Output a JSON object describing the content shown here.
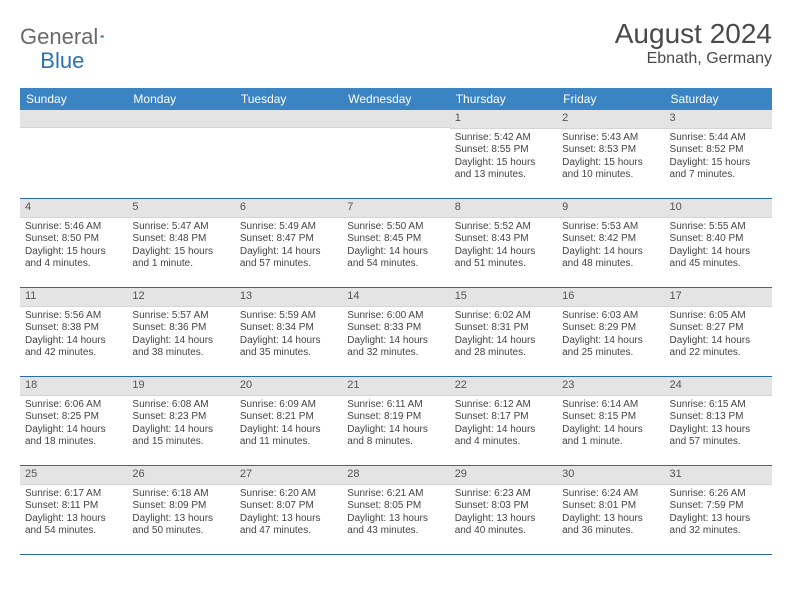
{
  "logo": {
    "text1": "General",
    "text2": "Blue"
  },
  "title": "August 2024",
  "location": "Ebnath, Germany",
  "day_headers": [
    "Sunday",
    "Monday",
    "Tuesday",
    "Wednesday",
    "Thursday",
    "Friday",
    "Saturday"
  ],
  "colors": {
    "header_bg": "#3b84c4",
    "header_fg": "#ffffff",
    "daynum_bg": "#e4e4e4",
    "rule": "#2a6aa8"
  },
  "weeks": [
    [
      null,
      null,
      null,
      null,
      {
        "n": "1",
        "sr": "5:42 AM",
        "ss": "8:55 PM",
        "dl": "15 hours and 13 minutes."
      },
      {
        "n": "2",
        "sr": "5:43 AM",
        "ss": "8:53 PM",
        "dl": "15 hours and 10 minutes."
      },
      {
        "n": "3",
        "sr": "5:44 AM",
        "ss": "8:52 PM",
        "dl": "15 hours and 7 minutes."
      }
    ],
    [
      {
        "n": "4",
        "sr": "5:46 AM",
        "ss": "8:50 PM",
        "dl": "15 hours and 4 minutes."
      },
      {
        "n": "5",
        "sr": "5:47 AM",
        "ss": "8:48 PM",
        "dl": "15 hours and 1 minute."
      },
      {
        "n": "6",
        "sr": "5:49 AM",
        "ss": "8:47 PM",
        "dl": "14 hours and 57 minutes."
      },
      {
        "n": "7",
        "sr": "5:50 AM",
        "ss": "8:45 PM",
        "dl": "14 hours and 54 minutes."
      },
      {
        "n": "8",
        "sr": "5:52 AM",
        "ss": "8:43 PM",
        "dl": "14 hours and 51 minutes."
      },
      {
        "n": "9",
        "sr": "5:53 AM",
        "ss": "8:42 PM",
        "dl": "14 hours and 48 minutes."
      },
      {
        "n": "10",
        "sr": "5:55 AM",
        "ss": "8:40 PM",
        "dl": "14 hours and 45 minutes."
      }
    ],
    [
      {
        "n": "11",
        "sr": "5:56 AM",
        "ss": "8:38 PM",
        "dl": "14 hours and 42 minutes."
      },
      {
        "n": "12",
        "sr": "5:57 AM",
        "ss": "8:36 PM",
        "dl": "14 hours and 38 minutes."
      },
      {
        "n": "13",
        "sr": "5:59 AM",
        "ss": "8:34 PM",
        "dl": "14 hours and 35 minutes."
      },
      {
        "n": "14",
        "sr": "6:00 AM",
        "ss": "8:33 PM",
        "dl": "14 hours and 32 minutes."
      },
      {
        "n": "15",
        "sr": "6:02 AM",
        "ss": "8:31 PM",
        "dl": "14 hours and 28 minutes."
      },
      {
        "n": "16",
        "sr": "6:03 AM",
        "ss": "8:29 PM",
        "dl": "14 hours and 25 minutes."
      },
      {
        "n": "17",
        "sr": "6:05 AM",
        "ss": "8:27 PM",
        "dl": "14 hours and 22 minutes."
      }
    ],
    [
      {
        "n": "18",
        "sr": "6:06 AM",
        "ss": "8:25 PM",
        "dl": "14 hours and 18 minutes."
      },
      {
        "n": "19",
        "sr": "6:08 AM",
        "ss": "8:23 PM",
        "dl": "14 hours and 15 minutes."
      },
      {
        "n": "20",
        "sr": "6:09 AM",
        "ss": "8:21 PM",
        "dl": "14 hours and 11 minutes."
      },
      {
        "n": "21",
        "sr": "6:11 AM",
        "ss": "8:19 PM",
        "dl": "14 hours and 8 minutes."
      },
      {
        "n": "22",
        "sr": "6:12 AM",
        "ss": "8:17 PM",
        "dl": "14 hours and 4 minutes."
      },
      {
        "n": "23",
        "sr": "6:14 AM",
        "ss": "8:15 PM",
        "dl": "14 hours and 1 minute."
      },
      {
        "n": "24",
        "sr": "6:15 AM",
        "ss": "8:13 PM",
        "dl": "13 hours and 57 minutes."
      }
    ],
    [
      {
        "n": "25",
        "sr": "6:17 AM",
        "ss": "8:11 PM",
        "dl": "13 hours and 54 minutes."
      },
      {
        "n": "26",
        "sr": "6:18 AM",
        "ss": "8:09 PM",
        "dl": "13 hours and 50 minutes."
      },
      {
        "n": "27",
        "sr": "6:20 AM",
        "ss": "8:07 PM",
        "dl": "13 hours and 47 minutes."
      },
      {
        "n": "28",
        "sr": "6:21 AM",
        "ss": "8:05 PM",
        "dl": "13 hours and 43 minutes."
      },
      {
        "n": "29",
        "sr": "6:23 AM",
        "ss": "8:03 PM",
        "dl": "13 hours and 40 minutes."
      },
      {
        "n": "30",
        "sr": "6:24 AM",
        "ss": "8:01 PM",
        "dl": "13 hours and 36 minutes."
      },
      {
        "n": "31",
        "sr": "6:26 AM",
        "ss": "7:59 PM",
        "dl": "13 hours and 32 minutes."
      }
    ]
  ],
  "labels": {
    "sunrise": "Sunrise:",
    "sunset": "Sunset:",
    "daylight": "Daylight:"
  }
}
